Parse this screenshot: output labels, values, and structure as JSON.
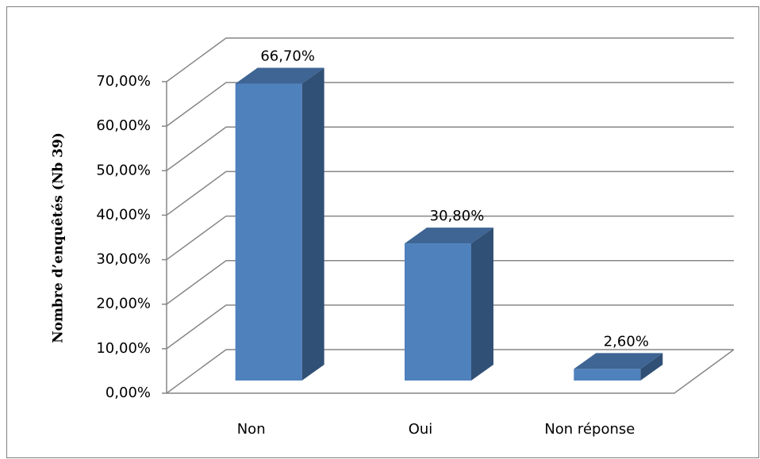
{
  "chart_data": {
    "type": "bar3d",
    "y_axis_label": "Nombre d’enquêtés (Nb 39)",
    "categories": [
      "Non",
      "Oui",
      "Non réponse"
    ],
    "values": [
      66.7,
      30.8,
      2.6
    ],
    "value_labels": [
      "66,70%",
      "30,80%",
      "2,60%"
    ],
    "color": "#4f81bd",
    "ylim": [
      0,
      70
    ],
    "yticks": [
      {
        "value": 0,
        "label": "0,00%"
      },
      {
        "value": 10,
        "label": "10,00%"
      },
      {
        "value": 20,
        "label": "20,00%"
      },
      {
        "value": 30,
        "label": "30,00%"
      },
      {
        "value": 40,
        "label": "40,00%"
      },
      {
        "value": 50,
        "label": "50,00%"
      },
      {
        "value": 60,
        "label": "60,00%"
      },
      {
        "value": 70,
        "label": "70,00%"
      }
    ],
    "grid": true
  }
}
